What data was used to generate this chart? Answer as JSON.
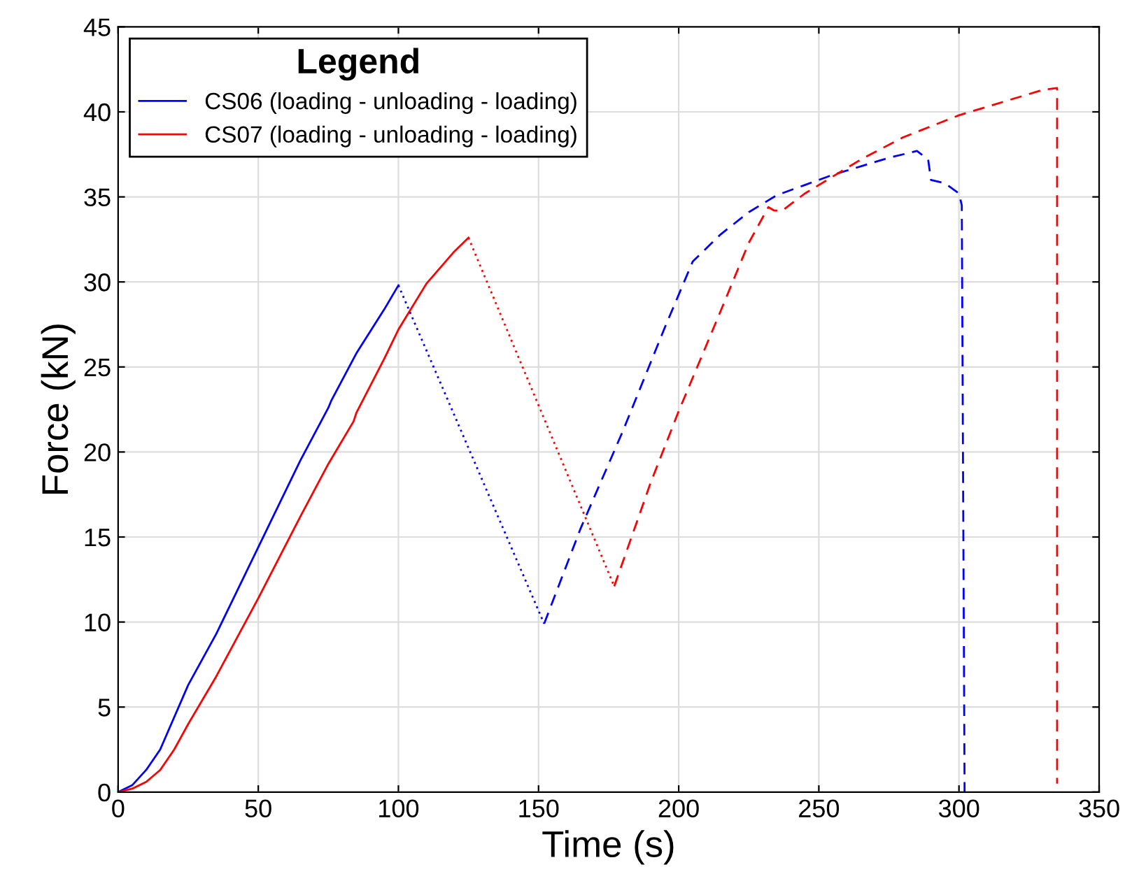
{
  "chart_data": {
    "type": "line",
    "xlabel": "Time (s)",
    "ylabel": "Force (kN)",
    "legend_title": "Legend",
    "legend": "top left",
    "grid": true,
    "marker": "none",
    "xlim": [
      0,
      350
    ],
    "ylim": [
      0,
      45
    ],
    "xticks": [
      0,
      50,
      100,
      150,
      200,
      250,
      300,
      350
    ],
    "yticks": [
      0,
      5,
      10,
      15,
      20,
      25,
      30,
      35,
      40,
      45
    ],
    "series": [
      {
        "name": "CS06 (loading - unloading - loading)",
        "color": "#0000ff",
        "line_style": "solid",
        "x": [
          0,
          5,
          10,
          15,
          25,
          35,
          50,
          65,
          75,
          76,
          85,
          95,
          100
        ],
        "values": [
          0,
          0.4,
          1.3,
          2.5,
          6.3,
          9.3,
          14.4,
          19.5,
          22.6,
          23,
          25.8,
          28.4,
          29.8
        ]
      },
      {
        "name": "CS07 (loading - unloading - loading)",
        "color": "#ff0000",
        "line_style": "solid",
        "x": [
          0,
          5,
          10,
          15,
          20,
          25,
          35,
          50,
          65,
          75,
          84,
          85,
          95,
          100,
          110,
          120,
          125
        ],
        "values": [
          0,
          0.2,
          0.6,
          1.3,
          2.5,
          4,
          6.8,
          11.4,
          16.2,
          19.3,
          21.8,
          22.3,
          25.5,
          27.2,
          29.9,
          31.8,
          32.6
        ]
      },
      {
        "color": "#0000ff",
        "line_style": "dotted",
        "x": [
          100,
          152
        ],
        "values": [
          29.8,
          9.9
        ]
      },
      {
        "color": "#ff0000",
        "line_style": "dotted",
        "x": [
          125,
          177
        ],
        "values": [
          32.6,
          12.1
        ]
      },
      {
        "color": "#0000ff",
        "line_style": "dashed",
        "x": [
          152,
          165,
          180,
          195,
          205,
          215,
          225,
          235,
          245,
          255,
          265,
          275,
          285,
          289,
          290,
          295,
          300,
          301,
          302
        ],
        "values": [
          9.9,
          15.5,
          21.2,
          27.3,
          31.2,
          32.8,
          34.1,
          35.1,
          35.7,
          36.3,
          36.8,
          37.3,
          37.7,
          37.2,
          36,
          35.8,
          35.2,
          34.5,
          0
        ]
      },
      {
        "color": "#ff0000",
        "line_style": "dashed",
        "x": [
          177,
          190,
          200,
          215,
          225,
          232,
          234,
          237,
          245,
          255,
          265,
          280,
          300,
          320,
          330,
          335,
          335
        ],
        "values": [
          12.1,
          18.2,
          22.4,
          28.3,
          32.3,
          34.4,
          34.2,
          34.2,
          35.2,
          36.2,
          37.2,
          38.5,
          39.8,
          40.8,
          41.3,
          41.4,
          0.5
        ]
      }
    ]
  }
}
